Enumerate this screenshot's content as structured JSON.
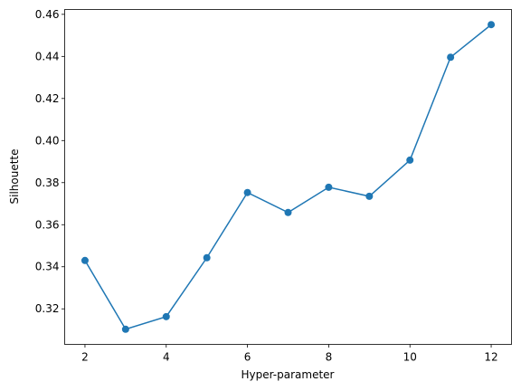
{
  "chart_data": {
    "type": "line",
    "x_label": "Hyper-parameter",
    "y_label": "Silhouette",
    "x": [
      2,
      3,
      4,
      5,
      6,
      7,
      8,
      9,
      10,
      11,
      12
    ],
    "series": [
      {
        "color": "#1f77b4",
        "values": [
          0.343,
          0.3103,
          0.3163,
          0.3443,
          0.3753,
          0.3658,
          0.3778,
          0.3735,
          0.3907,
          0.4396,
          0.4551
        ]
      }
    ],
    "xlim": [
      1.5,
      12.5
    ],
    "xticks": [
      2,
      4,
      6,
      8,
      10,
      12
    ],
    "ylim": [
      0.3031,
      0.4623
    ],
    "yticks": [
      0.32,
      0.34,
      0.36,
      0.38,
      {
        "value": 0.4,
        "label": "0.40"
      },
      0.42,
      0.44,
      0.46
    ],
    "grid": false,
    "markers": true
  }
}
